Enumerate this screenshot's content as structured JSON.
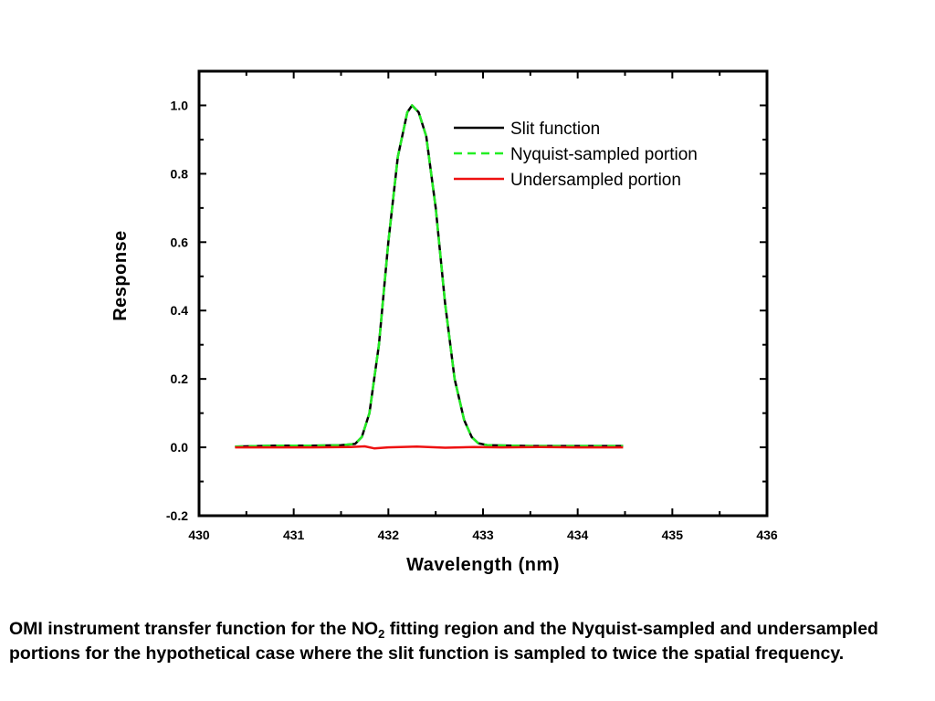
{
  "chart_data": {
    "type": "line",
    "title": "",
    "xlabel": "Wavelength (nm)",
    "ylabel": "Response",
    "xlim": [
      430,
      436
    ],
    "ylim": [
      -0.2,
      1.1
    ],
    "x_ticks": [
      "430",
      "431",
      "432",
      "433",
      "434",
      "435",
      "436"
    ],
    "y_ticks": [
      "-0.2",
      "0.0",
      "0.2",
      "0.4",
      "0.6",
      "0.8",
      "1.0"
    ],
    "grid": false,
    "legend_position": "top-right",
    "series": [
      {
        "name": "Slit function",
        "color": "#000000",
        "style": "solid",
        "x": [
          430.38,
          430.8,
          431.2,
          431.5,
          431.65,
          431.72,
          431.8,
          431.9,
          432.0,
          432.1,
          432.2,
          432.25,
          432.32,
          432.4,
          432.5,
          432.6,
          432.7,
          432.8,
          432.88,
          432.95,
          433.05,
          433.5,
          434.0,
          434.48
        ],
        "y": [
          0.002,
          0.005,
          0.005,
          0.006,
          0.01,
          0.03,
          0.1,
          0.3,
          0.6,
          0.85,
          0.98,
          1.0,
          0.98,
          0.91,
          0.7,
          0.42,
          0.2,
          0.08,
          0.03,
          0.012,
          0.006,
          0.004,
          0.004,
          0.004
        ]
      },
      {
        "name": "Nyquist-sampled portion",
        "color": "#22ee22",
        "style": "dashed",
        "x": [
          430.38,
          430.8,
          431.2,
          431.5,
          431.65,
          431.72,
          431.8,
          431.9,
          432.0,
          432.1,
          432.2,
          432.25,
          432.32,
          432.4,
          432.5,
          432.6,
          432.7,
          432.8,
          432.88,
          432.95,
          433.05,
          433.5,
          434.0,
          434.48
        ],
        "y": [
          0.002,
          0.005,
          0.005,
          0.006,
          0.01,
          0.03,
          0.1,
          0.3,
          0.6,
          0.85,
          0.98,
          1.0,
          0.98,
          0.91,
          0.7,
          0.42,
          0.2,
          0.08,
          0.03,
          0.012,
          0.006,
          0.004,
          0.004,
          0.004
        ]
      },
      {
        "name": "Undersampled portion",
        "color": "#ee1111",
        "style": "solid",
        "x": [
          430.38,
          430.8,
          431.2,
          431.6,
          431.75,
          431.85,
          432.0,
          432.3,
          432.6,
          432.9,
          433.2,
          433.6,
          434.0,
          434.48
        ],
        "y": [
          0.0,
          0.0,
          0.0,
          0.001,
          0.003,
          -0.003,
          0.0,
          0.002,
          -0.001,
          0.001,
          0.0,
          0.001,
          0.0,
          0.0
        ]
      }
    ]
  },
  "caption": {
    "part1": "OMI instrument transfer function for the NO",
    "subscript": "2",
    "part2": " fitting region and the Nyquist-sampled and undersampled portions for the hypothetical case where the slit function is sampled to twice the spatial frequency."
  }
}
